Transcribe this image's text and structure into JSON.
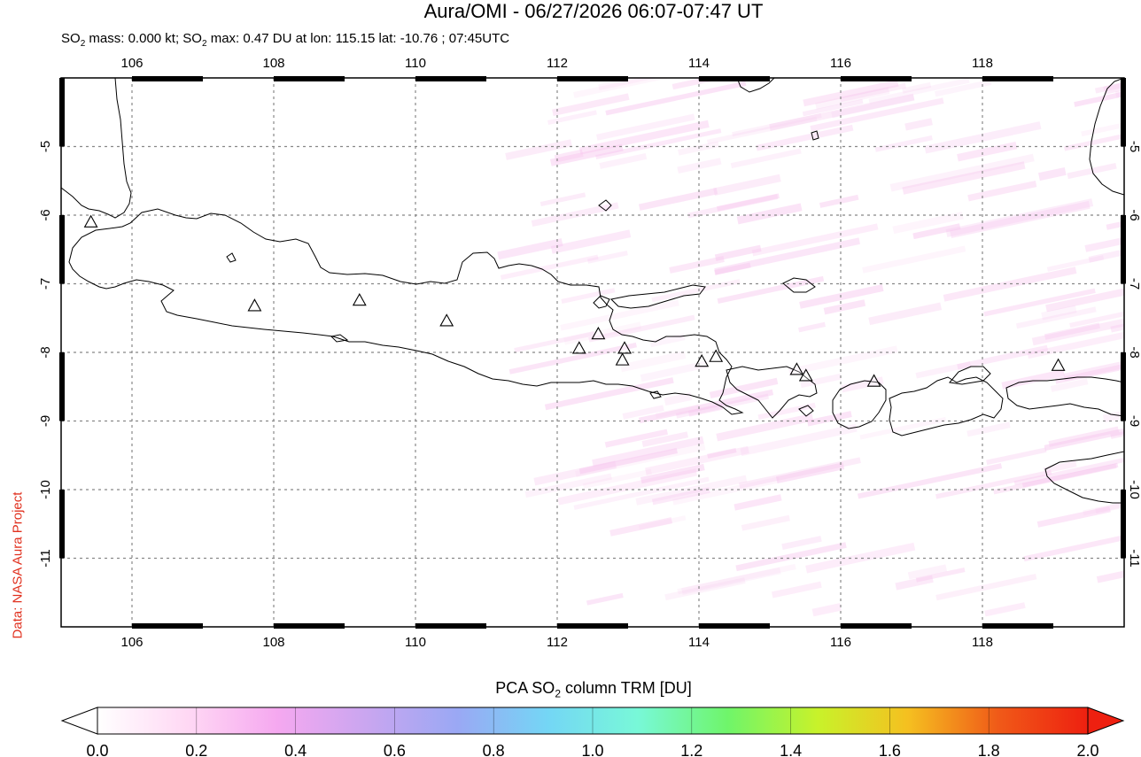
{
  "title": "Aura/OMI - 06/27/2026 06:07-07:47 UT",
  "subtitle_parts": {
    "a": "SO",
    "a_sub": "2",
    "b": " mass: 0.000 kt; SO",
    "b_sub": "2",
    "c": " max: 0.47 DU at lon: 115.15 lat: -10.76 ; 07:45UTC"
  },
  "credit": "Data: NASA Aura Project",
  "colorbar": {
    "label_pre": "PCA SO",
    "label_sub": "2",
    "label_post": " column TRM [DU]",
    "ticks": [
      "0.0",
      "0.2",
      "0.4",
      "0.6",
      "0.8",
      "1.0",
      "1.2",
      "1.4",
      "1.6",
      "1.8",
      "2.0"
    ],
    "stops": [
      "#ffffff",
      "#ffd8f4",
      "#f5a8f0",
      "#c9a6f0",
      "#9aa8f4",
      "#74d6f5",
      "#78f8d8",
      "#6ff56a",
      "#c8f22a",
      "#f5c020",
      "#f05a18",
      "#ee2010"
    ],
    "min_color": "#ffffff",
    "max_color": "#ee2010"
  },
  "map": {
    "lon_min": 105,
    "lon_max": 120,
    "lat_top": -4,
    "lat_bottom": -12,
    "lon_ticks": [
      "106",
      "108",
      "110",
      "112",
      "114",
      "116",
      "118"
    ],
    "lat_ticks": [
      "-5",
      "-6",
      "-7",
      "-8",
      "-9",
      "-10",
      "-11"
    ],
    "volcanoes": [
      {
        "lon": 105.42,
        "lat": -6.1
      },
      {
        "lon": 107.73,
        "lat": -7.32
      },
      {
        "lon": 109.21,
        "lat": -7.24
      },
      {
        "lon": 110.44,
        "lat": -7.54
      },
      {
        "lon": 112.31,
        "lat": -7.94
      },
      {
        "lon": 112.58,
        "lat": -7.73
      },
      {
        "lon": 112.95,
        "lat": -7.94
      },
      {
        "lon": 112.92,
        "lat": -8.11
      },
      {
        "lon": 114.04,
        "lat": -8.13
      },
      {
        "lon": 114.24,
        "lat": -8.06
      },
      {
        "lon": 115.38,
        "lat": -8.25
      },
      {
        "lon": 115.51,
        "lat": -8.34
      },
      {
        "lon": 116.47,
        "lat": -8.42
      },
      {
        "lon": 119.07,
        "lat": -8.19
      }
    ]
  }
}
